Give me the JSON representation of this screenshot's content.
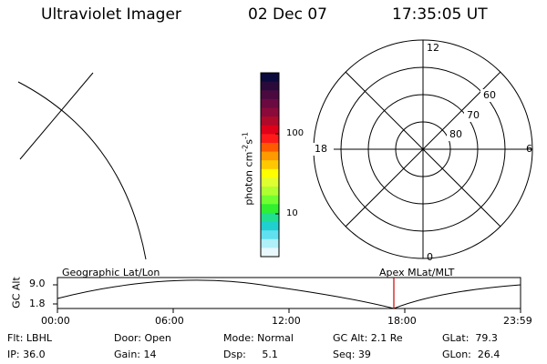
{
  "header": {
    "instrument": "Ultraviolet Imager",
    "date": "02 Dec 07",
    "time": "17:35:05 UT"
  },
  "colorbar": {
    "axis_label": "photon cm",
    "axis_label_exp1": "-2",
    "axis_label_mid": "s",
    "axis_label_exp2": "-1",
    "tick_100": "100",
    "tick_10": "10",
    "colors": [
      "#0a0a3c",
      "#2a0a3a",
      "#4a0a40",
      "#6a0a40",
      "#8a0a3a",
      "#b00a2a",
      "#e0001a",
      "#ff1a1a",
      "#ff5a00",
      "#ff9a00",
      "#ffc800",
      "#ffff00",
      "#e0ff30",
      "#b0ff30",
      "#70ff30",
      "#30f030",
      "#20e090",
      "#20d0d0",
      "#60e0f0",
      "#b0f0f8",
      "#e8f8fc"
    ]
  },
  "polar": {
    "mlt_top": "12",
    "mlt_left": "18",
    "mlt_right": "6",
    "mlt_bottom": "0",
    "lat_60": "60",
    "lat_70": "70",
    "lat_80": "80"
  },
  "timeline": {
    "left_label": "Geographic Lat/Lon",
    "right_label": "Apex MLat/MLT",
    "y_axis_label": "GC Alt",
    "y_top": "9.0",
    "y_bottom": "1.8",
    "x_ticks": [
      "00:00",
      "06:00",
      "12:00",
      "18:00",
      "23:59"
    ]
  },
  "info": {
    "flt": "Flt: LBHL",
    "ip": "IP: 36.0",
    "door": "Door: Open",
    "gain": "Gain: 14",
    "mode": "Mode: Normal",
    "dsp": "Dsp:     5.1",
    "gcalt": "GC Alt: 2.1 Re",
    "seq": "Seq: 39",
    "glat": "GLat:  79.3",
    "glon": "GLon:  26.4"
  },
  "colors": {
    "foreground": "#000000",
    "background": "#ffffff",
    "marker": "#cc0000"
  }
}
